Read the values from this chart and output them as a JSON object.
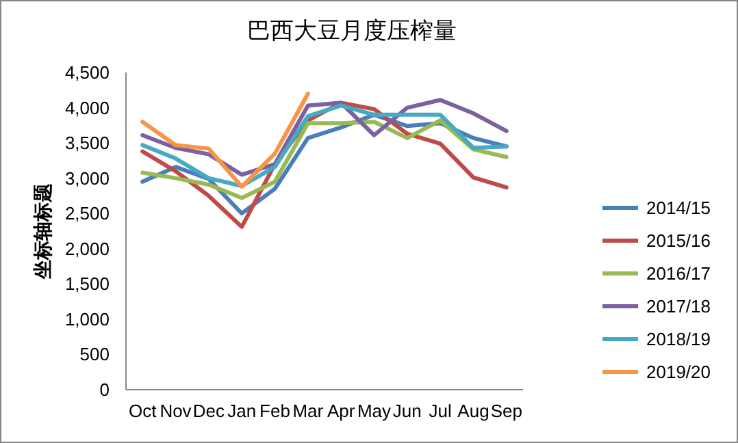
{
  "chart_data": {
    "type": "line",
    "title": "巴西大豆月度压榨量",
    "ylabel": "坐标轴标题",
    "categories": [
      "Oct",
      "Nov",
      "Dec",
      "Jan",
      "Feb",
      "Mar",
      "Apr",
      "May",
      "Jun",
      "Jul",
      "Aug",
      "Sep"
    ],
    "ylim": [
      0,
      4500
    ],
    "yticks": [
      {
        "value": 0,
        "label": "0"
      },
      {
        "value": 500,
        "label": "500"
      },
      {
        "value": 1000,
        "label": "1,000"
      },
      {
        "value": 1500,
        "label": "1,500"
      },
      {
        "value": 2000,
        "label": "2,000"
      },
      {
        "value": 2500,
        "label": "2,500"
      },
      {
        "value": 3000,
        "label": "3,000"
      },
      {
        "value": 3500,
        "label": "3,500"
      },
      {
        "value": 4000,
        "label": "4,000"
      },
      {
        "value": 4500,
        "label": "4,500"
      }
    ],
    "legend": "right",
    "series": [
      {
        "name": "2014/15",
        "color": "#4a7ebb",
        "values": [
          2950,
          3160,
          2990,
          2500,
          2850,
          3570,
          3720,
          3900,
          3740,
          3780,
          3570,
          3450
        ]
      },
      {
        "name": "2015/16",
        "color": "#be4b48",
        "values": [
          3380,
          3100,
          2750,
          2310,
          3200,
          3820,
          4070,
          3980,
          3630,
          3490,
          3010,
          2870
        ]
      },
      {
        "name": "2016/17",
        "color": "#98b954",
        "values": [
          3080,
          3000,
          2910,
          2720,
          2950,
          3780,
          3780,
          3800,
          3570,
          3820,
          3410,
          3300
        ]
      },
      {
        "name": "2017/18",
        "color": "#7d60a0",
        "values": [
          3610,
          3430,
          3340,
          3050,
          3200,
          4030,
          4070,
          3610,
          4000,
          4110,
          3920,
          3670
        ]
      },
      {
        "name": "2018/19",
        "color": "#46aac5",
        "values": [
          3470,
          3280,
          3000,
          2890,
          3160,
          3880,
          4030,
          3900,
          3900,
          3900,
          3430,
          3450
        ]
      },
      {
        "name": "2019/20",
        "color": "#f79646",
        "values": [
          3800,
          3470,
          3420,
          2880,
          3350,
          4200,
          null,
          null,
          null,
          null,
          null,
          null
        ]
      }
    ]
  }
}
